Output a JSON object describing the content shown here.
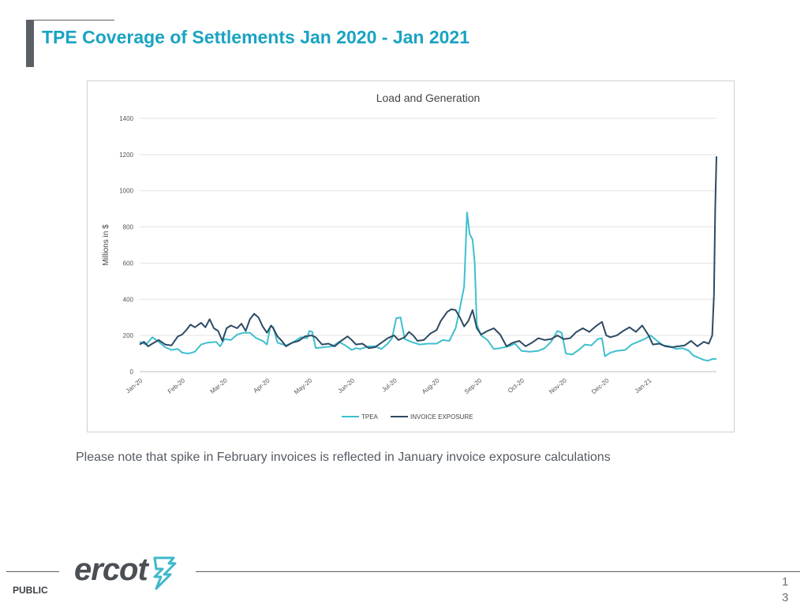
{
  "header": {
    "title": "TPE Coverage of Settlements Jan 2020 - Jan 2021"
  },
  "note": "Please note that spike in February invoices is reflected in January invoice exposure calculations",
  "footer": {
    "classification": "PUBLIC",
    "logo_text": "ercot",
    "page_number_line1": "1",
    "page_number_line2": "3"
  },
  "colors": {
    "title": "#1aa3c2",
    "tpea": "#3fbfcf",
    "invoice_exposure": "#2d4a63",
    "logo": "#4b4f55",
    "logo_mark": "#3fb8cc"
  },
  "chart_data": {
    "type": "line",
    "title": "Load and Generation",
    "xlabel": "",
    "ylabel": "Millions in $",
    "ylim": [
      0,
      1400
    ],
    "yticks": [
      0,
      200,
      400,
      600,
      800,
      1000,
      1200,
      1400
    ],
    "xlim": [
      0,
      13.6
    ],
    "grid": true,
    "legend_position": "bottom",
    "x_ticks": [
      {
        "label": "Jan-20",
        "x": 0
      },
      {
        "label": "Feb-20",
        "x": 1
      },
      {
        "label": "Mar-20",
        "x": 2
      },
      {
        "label": "Apr-20",
        "x": 3
      },
      {
        "label": "May-20",
        "x": 4
      },
      {
        "label": "Jun-20",
        "x": 5
      },
      {
        "label": "Jul-20",
        "x": 6
      },
      {
        "label": "Aug-20",
        "x": 7
      },
      {
        "label": "Sep-20",
        "x": 8
      },
      {
        "label": "Oct-20",
        "x": 9
      },
      {
        "label": "Nov-20",
        "x": 10
      },
      {
        "label": "Dec-20",
        "x": 11
      },
      {
        "label": "Jan-21",
        "x": 12
      }
    ],
    "series": [
      {
        "name": "TPEA",
        "color": "#3fbfcf",
        "points": [
          [
            0.0,
            165
          ],
          [
            0.15,
            150
          ],
          [
            0.3,
            190
          ],
          [
            0.45,
            165
          ],
          [
            0.6,
            135
          ],
          [
            0.75,
            120
          ],
          [
            0.9,
            125
          ],
          [
            1.0,
            105
          ],
          [
            1.15,
            100
          ],
          [
            1.3,
            110
          ],
          [
            1.45,
            150
          ],
          [
            1.6,
            160
          ],
          [
            1.8,
            165
          ],
          [
            1.9,
            140
          ],
          [
            2.0,
            180
          ],
          [
            2.15,
            175
          ],
          [
            2.3,
            205
          ],
          [
            2.45,
            215
          ],
          [
            2.6,
            215
          ],
          [
            2.75,
            185
          ],
          [
            2.9,
            170
          ],
          [
            3.0,
            150
          ],
          [
            3.08,
            250
          ],
          [
            3.15,
            245
          ],
          [
            3.25,
            160
          ],
          [
            3.45,
            145
          ],
          [
            3.6,
            160
          ],
          [
            3.8,
            190
          ],
          [
            3.95,
            185
          ],
          [
            4.0,
            225
          ],
          [
            4.07,
            220
          ],
          [
            4.15,
            130
          ],
          [
            4.35,
            135
          ],
          [
            4.55,
            140
          ],
          [
            4.7,
            165
          ],
          [
            4.85,
            145
          ],
          [
            5.0,
            120
          ],
          [
            5.1,
            130
          ],
          [
            5.2,
            125
          ],
          [
            5.4,
            140
          ],
          [
            5.55,
            140
          ],
          [
            5.7,
            125
          ],
          [
            5.85,
            155
          ],
          [
            5.95,
            185
          ],
          [
            6.05,
            295
          ],
          [
            6.15,
            300
          ],
          [
            6.25,
            180
          ],
          [
            6.4,
            165
          ],
          [
            6.6,
            150
          ],
          [
            6.8,
            155
          ],
          [
            7.0,
            155
          ],
          [
            7.15,
            175
          ],
          [
            7.3,
            170
          ],
          [
            7.45,
            240
          ],
          [
            7.55,
            350
          ],
          [
            7.65,
            470
          ],
          [
            7.72,
            880
          ],
          [
            7.78,
            760
          ],
          [
            7.85,
            730
          ],
          [
            7.9,
            600
          ],
          [
            7.95,
            260
          ],
          [
            8.05,
            200
          ],
          [
            8.2,
            175
          ],
          [
            8.35,
            125
          ],
          [
            8.5,
            130
          ],
          [
            8.7,
            140
          ],
          [
            8.85,
            155
          ],
          [
            9.0,
            115
          ],
          [
            9.2,
            110
          ],
          [
            9.4,
            115
          ],
          [
            9.55,
            130
          ],
          [
            9.7,
            165
          ],
          [
            9.85,
            225
          ],
          [
            9.95,
            215
          ],
          [
            10.05,
            100
          ],
          [
            10.2,
            95
          ],
          [
            10.35,
            120
          ],
          [
            10.5,
            150
          ],
          [
            10.65,
            145
          ],
          [
            10.8,
            180
          ],
          [
            10.9,
            185
          ],
          [
            10.97,
            85
          ],
          [
            11.1,
            105
          ],
          [
            11.25,
            115
          ],
          [
            11.45,
            120
          ],
          [
            11.6,
            150
          ],
          [
            11.75,
            165
          ],
          [
            11.9,
            180
          ],
          [
            12.05,
            200
          ],
          [
            12.2,
            170
          ],
          [
            12.35,
            145
          ],
          [
            12.5,
            140
          ],
          [
            12.65,
            125
          ],
          [
            12.8,
            130
          ],
          [
            12.95,
            115
          ],
          [
            13.05,
            90
          ],
          [
            13.2,
            75
          ],
          [
            13.3,
            65
          ],
          [
            13.4,
            60
          ],
          [
            13.5,
            70
          ],
          [
            13.6,
            70
          ]
        ]
      },
      {
        "name": "INVOICE EXPOSURE",
        "color": "#2d4a63",
        "points": [
          [
            0.0,
            150
          ],
          [
            0.1,
            165
          ],
          [
            0.2,
            140
          ],
          [
            0.3,
            155
          ],
          [
            0.45,
            175
          ],
          [
            0.6,
            150
          ],
          [
            0.75,
            145
          ],
          [
            0.9,
            195
          ],
          [
            1.0,
            205
          ],
          [
            1.1,
            230
          ],
          [
            1.2,
            260
          ],
          [
            1.3,
            245
          ],
          [
            1.45,
            270
          ],
          [
            1.55,
            245
          ],
          [
            1.65,
            290
          ],
          [
            1.75,
            240
          ],
          [
            1.85,
            225
          ],
          [
            1.95,
            170
          ],
          [
            2.05,
            240
          ],
          [
            2.15,
            255
          ],
          [
            2.3,
            240
          ],
          [
            2.4,
            265
          ],
          [
            2.5,
            225
          ],
          [
            2.6,
            290
          ],
          [
            2.7,
            320
          ],
          [
            2.8,
            300
          ],
          [
            2.9,
            250
          ],
          [
            3.0,
            215
          ],
          [
            3.1,
            255
          ],
          [
            3.15,
            240
          ],
          [
            3.25,
            195
          ],
          [
            3.35,
            170
          ],
          [
            3.45,
            140
          ],
          [
            3.6,
            160
          ],
          [
            3.75,
            170
          ],
          [
            3.9,
            195
          ],
          [
            4.05,
            200
          ],
          [
            4.15,
            190
          ],
          [
            4.3,
            150
          ],
          [
            4.45,
            155
          ],
          [
            4.6,
            140
          ],
          [
            4.75,
            170
          ],
          [
            4.9,
            195
          ],
          [
            5.0,
            175
          ],
          [
            5.1,
            150
          ],
          [
            5.25,
            155
          ],
          [
            5.4,
            130
          ],
          [
            5.55,
            135
          ],
          [
            5.7,
            160
          ],
          [
            5.85,
            185
          ],
          [
            6.0,
            200
          ],
          [
            6.1,
            175
          ],
          [
            6.25,
            190
          ],
          [
            6.35,
            220
          ],
          [
            6.45,
            200
          ],
          [
            6.55,
            170
          ],
          [
            6.7,
            175
          ],
          [
            6.85,
            210
          ],
          [
            7.0,
            230
          ],
          [
            7.1,
            280
          ],
          [
            7.25,
            330
          ],
          [
            7.35,
            345
          ],
          [
            7.45,
            340
          ],
          [
            7.55,
            300
          ],
          [
            7.65,
            250
          ],
          [
            7.75,
            280
          ],
          [
            7.85,
            340
          ],
          [
            7.95,
            240
          ],
          [
            8.05,
            205
          ],
          [
            8.2,
            225
          ],
          [
            8.35,
            240
          ],
          [
            8.5,
            205
          ],
          [
            8.65,
            140
          ],
          [
            8.8,
            160
          ],
          [
            8.95,
            170
          ],
          [
            9.1,
            140
          ],
          [
            9.25,
            160
          ],
          [
            9.4,
            185
          ],
          [
            9.55,
            175
          ],
          [
            9.7,
            180
          ],
          [
            9.85,
            200
          ],
          [
            10.0,
            180
          ],
          [
            10.15,
            185
          ],
          [
            10.3,
            220
          ],
          [
            10.45,
            240
          ],
          [
            10.6,
            220
          ],
          [
            10.75,
            250
          ],
          [
            10.9,
            275
          ],
          [
            11.0,
            200
          ],
          [
            11.1,
            190
          ],
          [
            11.25,
            200
          ],
          [
            11.4,
            225
          ],
          [
            11.55,
            245
          ],
          [
            11.7,
            220
          ],
          [
            11.85,
            255
          ],
          [
            12.0,
            200
          ],
          [
            12.1,
            150
          ],
          [
            12.25,
            155
          ],
          [
            12.4,
            140
          ],
          [
            12.55,
            135
          ],
          [
            12.7,
            140
          ],
          [
            12.85,
            145
          ],
          [
            13.0,
            170
          ],
          [
            13.15,
            140
          ],
          [
            13.3,
            165
          ],
          [
            13.42,
            155
          ],
          [
            13.5,
            200
          ],
          [
            13.54,
            420
          ],
          [
            13.57,
            900
          ],
          [
            13.6,
            1190
          ]
        ]
      }
    ]
  }
}
